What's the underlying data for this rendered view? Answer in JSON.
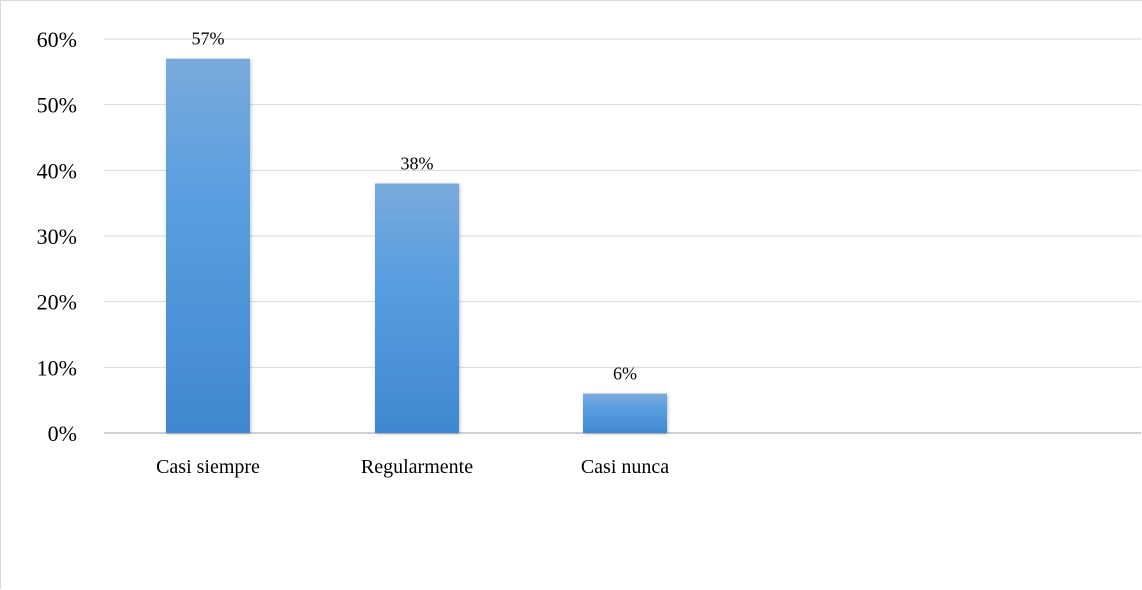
{
  "chart_data": {
    "type": "bar",
    "title": "",
    "xlabel": "",
    "ylabel": "",
    "categories": [
      "Casi siempre",
      "Regularmente",
      "Casi nunca"
    ],
    "values": [
      0.57,
      0.38,
      0.06
    ],
    "data_labels": [
      "57%",
      "38%",
      "6%"
    ],
    "ylim": [
      0,
      0.6
    ],
    "yticks": [
      0,
      0.1,
      0.2,
      0.3,
      0.4,
      0.5,
      0.6
    ],
    "ytick_labels": [
      "0%",
      "10%",
      "20%",
      "30%",
      "40%",
      "50%",
      "60%"
    ],
    "grid": true,
    "legend": "none",
    "colors": {
      "bar_top": "#7aaadc",
      "bar_bottom": "#3f88cf",
      "grid": "#d9d9d9",
      "axis": "#bfbfbf"
    }
  }
}
